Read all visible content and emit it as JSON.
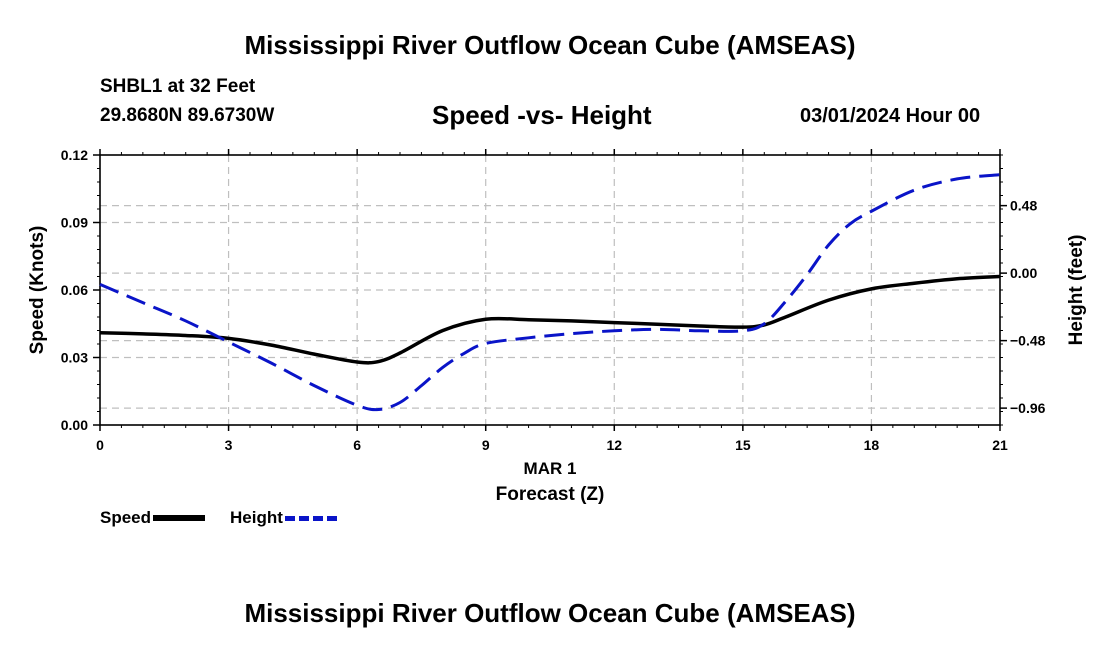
{
  "title": "Mississippi River Outflow Ocean Cube (AMSEAS)",
  "footer_title": "Mississippi River Outflow Ocean Cube (AMSEAS)",
  "station": "SHBL1 at 32 Feet",
  "coordinates": "29.8680N  89.6730W",
  "subtitle": "Speed -vs- Height",
  "datetime": "03/01/2024 Hour 00",
  "colors": {
    "speed": "#000000",
    "height": "#0a14c8",
    "grid": "#bfbfbf"
  },
  "legend": {
    "speed_label": "Speed",
    "height_label": "Height"
  },
  "chart_data": {
    "type": "line",
    "xlabel": "Forecast (Z)",
    "xdate_label": "MAR 1",
    "ylabel_left": "Speed (Knots)",
    "ylabel_right": "Height (feet)",
    "xlim": [
      0,
      21
    ],
    "ylim_left": [
      0,
      0.12
    ],
    "ylim_right": [
      -1.08,
      0.84
    ],
    "x_ticks": [
      "0",
      "3",
      "6",
      "9",
      "12",
      "15",
      "18",
      "21"
    ],
    "y_left_ticks": [
      "0.00",
      "0.03",
      "0.06",
      "0.09",
      "0.12"
    ],
    "y_right_ticks": [
      "−0.96",
      "−0.48",
      "0.00",
      "0.48"
    ],
    "grid": true,
    "series": [
      {
        "name": "Speed",
        "axis": "left",
        "style": "solid",
        "x": [
          0,
          1,
          2,
          3,
          4,
          5,
          6,
          6.5,
          7,
          8,
          9,
          10,
          11,
          12,
          13,
          14,
          15,
          15.5,
          16,
          17,
          18,
          19,
          20,
          21
        ],
        "values": [
          0.041,
          0.0405,
          0.0398,
          0.0385,
          0.0355,
          0.0315,
          0.028,
          0.0282,
          0.032,
          0.042,
          0.047,
          0.0468,
          0.0463,
          0.0455,
          0.0448,
          0.044,
          0.0435,
          0.0445,
          0.048,
          0.0555,
          0.0605,
          0.063,
          0.065,
          0.066
        ]
      },
      {
        "name": "Height",
        "axis": "right",
        "style": "dashed",
        "x": [
          0,
          1,
          2,
          3,
          4,
          5,
          6,
          6.5,
          7,
          7.5,
          8,
          8.5,
          9,
          10,
          11,
          12,
          13,
          14,
          15,
          15.5,
          16,
          16.5,
          17,
          17.5,
          18,
          19,
          20,
          21
        ],
        "values": [
          -0.08,
          -0.21,
          -0.34,
          -0.49,
          -0.64,
          -0.8,
          -0.94,
          -0.97,
          -0.92,
          -0.8,
          -0.67,
          -0.57,
          -0.5,
          -0.46,
          -0.43,
          -0.41,
          -0.4,
          -0.41,
          -0.41,
          -0.36,
          -0.2,
          -0.01,
          0.2,
          0.35,
          0.44,
          0.59,
          0.67,
          0.7
        ]
      }
    ]
  }
}
